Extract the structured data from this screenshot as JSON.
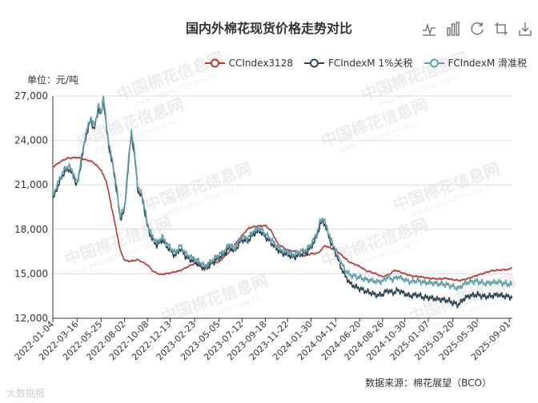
{
  "chart_data": {
    "type": "line",
    "title": "国内外棉花现货价格走势对比",
    "unit_label": "单位：元/吨",
    "ylim": [
      12000,
      27000
    ],
    "yticks": [
      12000,
      15000,
      18000,
      21000,
      24000,
      27000
    ],
    "ytick_labels": [
      "12,000",
      "15,000",
      "18,000",
      "21,000",
      "24,000",
      "27,000"
    ],
    "x_tick_labels": [
      "2022-01-04",
      "2022-03-16",
      "2022-05-25",
      "2022-08-02",
      "2022-10-08",
      "2022-12-13",
      "2023-02-23",
      "2023-05-05",
      "2023-07-12",
      "2023-09-18",
      "2023-11-22",
      "2024-01-30",
      "2024-04-11",
      "2024-06-20",
      "2024-08-26",
      "2024-10-30",
      "2025-01-07",
      "2025-03-20",
      "2025-05-30",
      "2025-09-01"
    ],
    "x_start": "2022-01-04",
    "x_end": "2025-09-10",
    "series": [
      {
        "name": "CCIndex3128",
        "color": "#b53a36",
        "points": [
          [
            "2022-01-04",
            22200
          ],
          [
            "2022-01-25",
            22550
          ],
          [
            "2022-02-15",
            22800
          ],
          [
            "2022-03-16",
            22850
          ],
          [
            "2022-04-10",
            22700
          ],
          [
            "2022-05-01",
            22550
          ],
          [
            "2022-05-25",
            22000
          ],
          [
            "2022-06-10",
            21200
          ],
          [
            "2022-06-25",
            19500
          ],
          [
            "2022-07-10",
            17800
          ],
          [
            "2022-07-20",
            16600
          ],
          [
            "2022-08-02",
            15900
          ],
          [
            "2022-08-20",
            15850
          ],
          [
            "2022-09-10",
            15950
          ],
          [
            "2022-09-30",
            15700
          ],
          [
            "2022-10-08",
            15600
          ],
          [
            "2022-10-25",
            15150
          ],
          [
            "2022-11-15",
            14950
          ],
          [
            "2022-12-13",
            15050
          ],
          [
            "2023-01-10",
            15200
          ],
          [
            "2023-02-01",
            15450
          ],
          [
            "2023-02-23",
            15700
          ],
          [
            "2023-03-20",
            15400
          ],
          [
            "2023-04-15",
            15750
          ],
          [
            "2023-05-05",
            15800
          ],
          [
            "2023-06-01",
            16400
          ],
          [
            "2023-06-25",
            17100
          ],
          [
            "2023-07-12",
            17600
          ],
          [
            "2023-08-01",
            18100
          ],
          [
            "2023-08-20",
            18200
          ],
          [
            "2023-09-18",
            18250
          ],
          [
            "2023-10-05",
            17900
          ],
          [
            "2023-10-25",
            17000
          ],
          [
            "2023-11-22",
            16600
          ],
          [
            "2023-12-15",
            16500
          ],
          [
            "2024-01-10",
            16200
          ],
          [
            "2024-01-30",
            16350
          ],
          [
            "2024-02-20",
            16400
          ],
          [
            "2024-03-10",
            16900
          ],
          [
            "2024-04-11",
            16600
          ],
          [
            "2024-05-01",
            16200
          ],
          [
            "2024-05-20",
            15800
          ],
          [
            "2024-06-20",
            15500
          ],
          [
            "2024-07-10",
            15200
          ],
          [
            "2024-08-01",
            15050
          ],
          [
            "2024-08-26",
            14800
          ],
          [
            "2024-09-15",
            14950
          ],
          [
            "2024-10-01",
            15250
          ],
          [
            "2024-10-30",
            15000
          ],
          [
            "2024-11-20",
            14850
          ],
          [
            "2024-12-15",
            14800
          ],
          [
            "2025-01-07",
            14700
          ],
          [
            "2025-02-05",
            14650
          ],
          [
            "2025-03-01",
            14700
          ],
          [
            "2025-03-20",
            14600
          ],
          [
            "2025-04-10",
            14550
          ],
          [
            "2025-04-30",
            14650
          ],
          [
            "2025-05-30",
            14900
          ],
          [
            "2025-06-20",
            15050
          ],
          [
            "2025-07-10",
            15200
          ],
          [
            "2025-08-01",
            15250
          ],
          [
            "2025-09-01",
            15300
          ],
          [
            "2025-09-10",
            15450
          ]
        ]
      },
      {
        "name": "FCIndexM 1%关税",
        "color": "#2f4554",
        "points": [
          [
            "2022-01-04",
            20000
          ],
          [
            "2022-01-20",
            21000
          ],
          [
            "2022-02-05",
            21800
          ],
          [
            "2022-02-20",
            22100
          ],
          [
            "2022-03-05",
            21600
          ],
          [
            "2022-03-16",
            20900
          ],
          [
            "2022-03-30",
            22800
          ],
          [
            "2022-04-10",
            24200
          ],
          [
            "2022-04-25",
            25400
          ],
          [
            "2022-05-05",
            24700
          ],
          [
            "2022-05-18",
            26200
          ],
          [
            "2022-05-25",
            25600
          ],
          [
            "2022-06-01",
            26900
          ],
          [
            "2022-06-10",
            24800
          ],
          [
            "2022-06-20",
            23200
          ],
          [
            "2022-06-30",
            22100
          ],
          [
            "2022-07-10",
            20600
          ],
          [
            "2022-07-20",
            18700
          ],
          [
            "2022-08-02",
            19300
          ],
          [
            "2022-08-12",
            22100
          ],
          [
            "2022-08-22",
            24500
          ],
          [
            "2022-09-01",
            22800
          ],
          [
            "2022-09-10",
            20600
          ],
          [
            "2022-09-22",
            20200
          ],
          [
            "2022-10-08",
            18200
          ],
          [
            "2022-10-20",
            17400
          ],
          [
            "2022-11-05",
            16900
          ],
          [
            "2022-11-20",
            17300
          ],
          [
            "2022-12-05",
            16800
          ],
          [
            "2022-12-13",
            16600
          ],
          [
            "2022-12-28",
            16200
          ],
          [
            "2023-01-12",
            16700
          ],
          [
            "2023-01-30",
            16100
          ],
          [
            "2023-02-15",
            15900
          ],
          [
            "2023-02-23",
            15800
          ],
          [
            "2023-03-10",
            15600
          ],
          [
            "2023-03-25",
            15300
          ],
          [
            "2023-04-10",
            15600
          ],
          [
            "2023-04-25",
            15900
          ],
          [
            "2023-05-05",
            16100
          ],
          [
            "2023-05-20",
            16300
          ],
          [
            "2023-06-05",
            16800
          ],
          [
            "2023-06-20",
            16500
          ],
          [
            "2023-07-05",
            17100
          ],
          [
            "2023-07-12",
            17300
          ],
          [
            "2023-07-28",
            17200
          ],
          [
            "2023-08-15",
            17700
          ],
          [
            "2023-09-01",
            17900
          ],
          [
            "2023-09-18",
            17500
          ],
          [
            "2023-10-05",
            17100
          ],
          [
            "2023-10-20",
            16700
          ],
          [
            "2023-11-05",
            16400
          ],
          [
            "2023-11-22",
            16300
          ],
          [
            "2023-12-10",
            16100
          ],
          [
            "2023-12-28",
            16300
          ],
          [
            "2024-01-15",
            16400
          ],
          [
            "2024-01-30",
            16800
          ],
          [
            "2024-02-15",
            17500
          ],
          [
            "2024-02-25",
            18300
          ],
          [
            "2024-03-05",
            18600
          ],
          [
            "2024-03-15",
            18000
          ],
          [
            "2024-03-28",
            17100
          ],
          [
            "2024-04-11",
            16400
          ],
          [
            "2024-04-25",
            15500
          ],
          [
            "2024-05-10",
            14800
          ],
          [
            "2024-05-25",
            14300
          ],
          [
            "2024-06-10",
            14100
          ],
          [
            "2024-06-20",
            14000
          ],
          [
            "2024-07-10",
            13800
          ],
          [
            "2024-07-25",
            13700
          ],
          [
            "2024-08-10",
            13550
          ],
          [
            "2024-08-26",
            13600
          ],
          [
            "2024-09-10",
            13900
          ],
          [
            "2024-09-25",
            13700
          ],
          [
            "2024-10-10",
            13900
          ],
          [
            "2024-10-30",
            13650
          ],
          [
            "2024-11-15",
            13500
          ],
          [
            "2024-12-05",
            13600
          ],
          [
            "2024-12-25",
            13400
          ],
          [
            "2025-01-07",
            13400
          ],
          [
            "2025-01-30",
            13300
          ],
          [
            "2025-02-20",
            13250
          ],
          [
            "2025-03-05",
            13200
          ],
          [
            "2025-03-20",
            13050
          ],
          [
            "2025-04-05",
            12900
          ],
          [
            "2025-04-20",
            13300
          ],
          [
            "2025-05-05",
            13500
          ],
          [
            "2025-05-30",
            13600
          ],
          [
            "2025-06-20",
            13450
          ],
          [
            "2025-07-10",
            13500
          ],
          [
            "2025-07-30",
            13600
          ],
          [
            "2025-08-15",
            13500
          ],
          [
            "2025-09-01",
            13450
          ],
          [
            "2025-09-10",
            13400
          ]
        ]
      },
      {
        "name": "FCIndexM 滑准税",
        "color": "#61a0a8",
        "points": [
          [
            "2022-01-04",
            20300
          ],
          [
            "2022-01-20",
            21200
          ],
          [
            "2022-02-05",
            22000
          ],
          [
            "2022-02-20",
            22300
          ],
          [
            "2022-03-05",
            21800
          ],
          [
            "2022-03-16",
            21100
          ],
          [
            "2022-03-30",
            23000
          ],
          [
            "2022-04-10",
            24400
          ],
          [
            "2022-04-25",
            25600
          ],
          [
            "2022-05-05",
            24900
          ],
          [
            "2022-05-18",
            26400
          ],
          [
            "2022-05-25",
            25800
          ],
          [
            "2022-06-01",
            27000
          ],
          [
            "2022-06-10",
            25000
          ],
          [
            "2022-06-20",
            23400
          ],
          [
            "2022-06-30",
            22300
          ],
          [
            "2022-07-10",
            20800
          ],
          [
            "2022-07-20",
            18900
          ],
          [
            "2022-08-02",
            19500
          ],
          [
            "2022-08-12",
            22300
          ],
          [
            "2022-08-22",
            24700
          ],
          [
            "2022-09-01",
            23000
          ],
          [
            "2022-09-10",
            20800
          ],
          [
            "2022-09-22",
            20400
          ],
          [
            "2022-10-08",
            18400
          ],
          [
            "2022-10-20",
            17600
          ],
          [
            "2022-11-05",
            17100
          ],
          [
            "2022-11-20",
            17500
          ],
          [
            "2022-12-05",
            17000
          ],
          [
            "2022-12-13",
            16800
          ],
          [
            "2022-12-28",
            16400
          ],
          [
            "2023-01-12",
            16900
          ],
          [
            "2023-01-30",
            16300
          ],
          [
            "2023-02-15",
            16100
          ],
          [
            "2023-02-23",
            16000
          ],
          [
            "2023-03-10",
            15800
          ],
          [
            "2023-03-25",
            15500
          ],
          [
            "2023-04-10",
            15800
          ],
          [
            "2023-04-25",
            16100
          ],
          [
            "2023-05-05",
            16300
          ],
          [
            "2023-05-20",
            16500
          ],
          [
            "2023-06-05",
            17000
          ],
          [
            "2023-06-20",
            16700
          ],
          [
            "2023-07-05",
            17300
          ],
          [
            "2023-07-12",
            17500
          ],
          [
            "2023-07-28",
            17400
          ],
          [
            "2023-08-15",
            17900
          ],
          [
            "2023-09-01",
            18100
          ],
          [
            "2023-09-18",
            17700
          ],
          [
            "2023-10-05",
            17300
          ],
          [
            "2023-10-20",
            16900
          ],
          [
            "2023-11-05",
            16600
          ],
          [
            "2023-11-22",
            16500
          ],
          [
            "2023-12-10",
            16300
          ],
          [
            "2023-12-28",
            16500
          ],
          [
            "2024-01-15",
            16600
          ],
          [
            "2024-01-30",
            17000
          ],
          [
            "2024-02-15",
            17700
          ],
          [
            "2024-02-25",
            18500
          ],
          [
            "2024-03-05",
            18800
          ],
          [
            "2024-03-15",
            18200
          ],
          [
            "2024-03-28",
            17300
          ],
          [
            "2024-04-11",
            16600
          ],
          [
            "2024-04-25",
            15800
          ],
          [
            "2024-05-10",
            15200
          ],
          [
            "2024-05-25",
            14900
          ],
          [
            "2024-06-10",
            14800
          ],
          [
            "2024-06-20",
            14750
          ],
          [
            "2024-07-10",
            14600
          ],
          [
            "2024-07-25",
            14550
          ],
          [
            "2024-08-10",
            14450
          ],
          [
            "2024-08-26",
            14500
          ],
          [
            "2024-09-10",
            14800
          ],
          [
            "2024-09-25",
            14600
          ],
          [
            "2024-10-10",
            14800
          ],
          [
            "2024-10-30",
            14600
          ],
          [
            "2024-11-15",
            14450
          ],
          [
            "2024-12-05",
            14550
          ],
          [
            "2024-12-25",
            14400
          ],
          [
            "2025-01-07",
            14400
          ],
          [
            "2025-01-30",
            14350
          ],
          [
            "2025-02-20",
            14300
          ],
          [
            "2025-03-05",
            14250
          ],
          [
            "2025-03-20",
            14150
          ],
          [
            "2025-04-05",
            14000
          ],
          [
            "2025-04-20",
            14300
          ],
          [
            "2025-05-05",
            14450
          ],
          [
            "2025-05-30",
            14500
          ],
          [
            "2025-06-20",
            14350
          ],
          [
            "2025-07-10",
            14400
          ],
          [
            "2025-07-30",
            14450
          ],
          [
            "2025-08-15",
            14350
          ],
          [
            "2025-09-01",
            14300
          ],
          [
            "2025-09-10",
            14280
          ]
        ]
      }
    ],
    "grid": true,
    "legend_position": "top-right",
    "source": "数据来源：棉花展望（BCO）"
  },
  "watermark": {
    "text": "中国棉花信息网",
    "url_text": "www.cottonchina.org.cn",
    "bottom_text": "大数据报"
  },
  "toolbar_icons": [
    "line-chart-icon",
    "bar-chart-icon",
    "restore-icon",
    "crop-icon",
    "download-icon"
  ]
}
